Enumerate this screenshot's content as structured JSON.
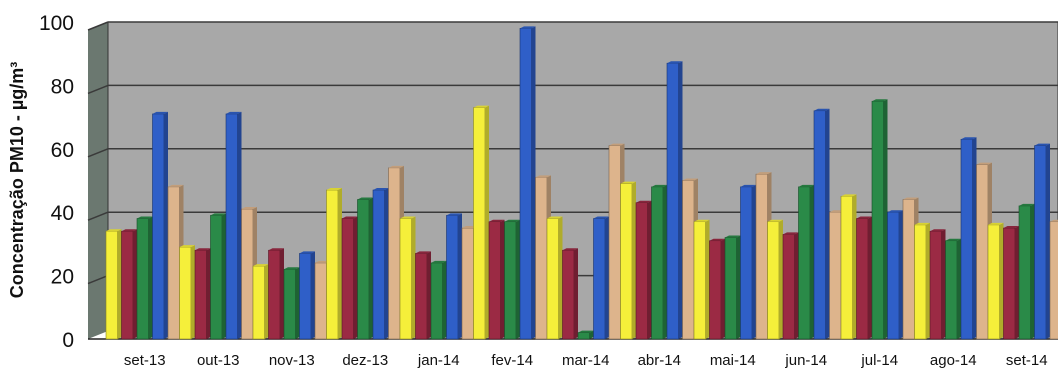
{
  "chart_data": {
    "type": "bar",
    "title": "",
    "xlabel": "",
    "ylabel": "Concentração PM10 - µg/m³",
    "ylim": [
      0,
      100
    ],
    "yticks": [
      0,
      20,
      40,
      60,
      80,
      100
    ],
    "grid": true,
    "legend": "none",
    "categories": [
      "set-13",
      "out-13",
      "nov-13",
      "dez-13",
      "jan-14",
      "fev-14",
      "mar-14",
      "abr-14",
      "mai-14",
      "jun-14",
      "jul-14",
      "ago-14",
      "set-14"
    ],
    "series": [
      {
        "color": "#f5ef3a",
        "values": [
          34,
          29,
          23,
          47,
          38,
          73,
          38,
          49,
          37,
          37,
          45,
          36,
          36
        ]
      },
      {
        "color": "#9b2a44",
        "values": [
          34,
          28,
          28,
          38,
          27,
          37,
          28,
          43,
          31,
          33,
          38,
          34,
          35
        ]
      },
      {
        "color": "#2a8a48",
        "values": [
          38,
          39,
          22,
          44,
          24,
          37,
          2,
          48,
          32,
          48,
          75,
          31,
          42
        ]
      },
      {
        "color": "#2f5fc8",
        "values": [
          71,
          71,
          27,
          47,
          39,
          98,
          38,
          87,
          48,
          72,
          40,
          63,
          61
        ]
      },
      {
        "color": "#ddb48c",
        "values": [
          48,
          41,
          24,
          54,
          35,
          51,
          61,
          50,
          52,
          40,
          44,
          55,
          37
        ]
      }
    ],
    "plot_background": "#a8a8a8",
    "wall_color": "#6b7870"
  }
}
